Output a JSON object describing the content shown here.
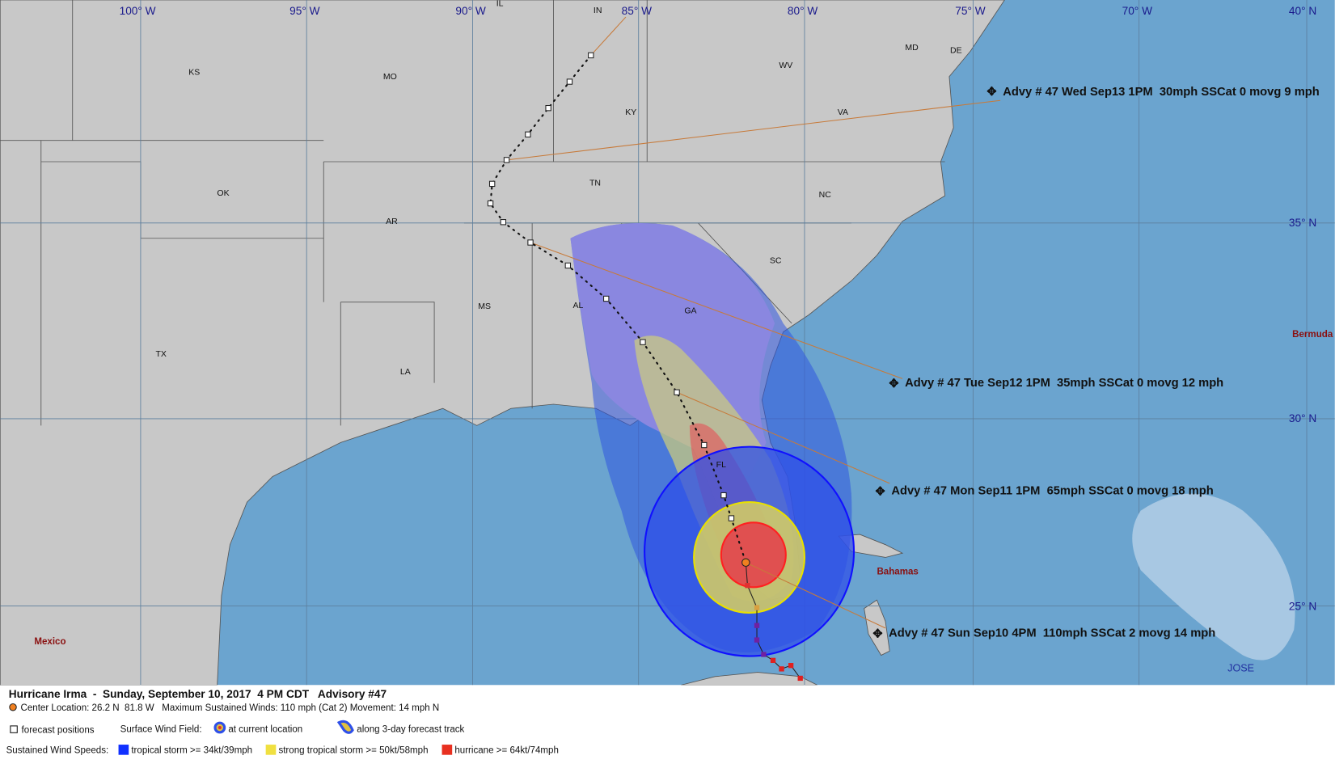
{
  "map": {
    "longitude_labels": [
      "100° W",
      "95° W",
      "90° W",
      "85° W",
      "80° W",
      "75° W",
      "70° W"
    ],
    "latitude_labels": [
      "40° N",
      "35° N",
      "30° N",
      "25° N"
    ],
    "state_labels": [
      "IL",
      "IN",
      "KS",
      "MO",
      "KY",
      "WV",
      "MD",
      "DE",
      "VA",
      "OK",
      "AR",
      "TN",
      "NC",
      "SC",
      "MS",
      "AL",
      "GA",
      "TX",
      "LA",
      "FL"
    ],
    "place_labels": [
      "Mexico",
      "Bahamas",
      "Bermuda",
      "JOSE"
    ],
    "advisories": [
      "Advy # 47 Wed Sep13 1PM  30mph SSCat 0 movg 9 mph",
      "Advy # 47 Tue Sep12 1PM  35mph SSCat 0 movg 12 mph",
      "Advy # 47 Mon Sep11 1PM  65mph SSCat 0 movg 18 mph",
      "Advy # 47 Sun Sep10 4PM  110mph SSCat 2 movg 14 mph"
    ]
  },
  "legend": {
    "title": "Hurricane Irma  -  Sunday, September 10, 2017  4 PM CDT   Advisory #47",
    "center": "Center Location: 26.2 N  81.8 W   Maximum Sustained Winds: 110 mph (Cat 2) Movement: 14 mph N",
    "forecast_positions": "forecast positions",
    "surface_wind_field": "Surface Wind Field:",
    "at_current_location": "at current location",
    "along_track": "along 3-day forecast track",
    "sustained_wind_speeds": "Sustained Wind Speeds:",
    "tropical_storm": "tropical storm >= 34kt/39mph",
    "strong_tropical_storm": "strong tropical storm >= 50kt/58mph",
    "hurricane": "hurricane >= 64kt/74mph"
  }
}
